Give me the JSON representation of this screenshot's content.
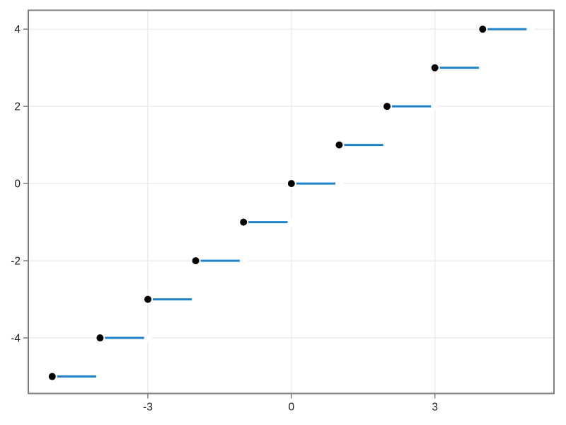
{
  "colors": {
    "background": "#ffffff",
    "line": "#1f82c8",
    "marker_fill": "#000000",
    "marker_halo": "#ffffff",
    "open_marker_fill": "#ffffff",
    "grid": "#ececec",
    "frame": "#7f7f7f",
    "tick": "#7f7f7f",
    "tick_label": "#1a1a1a"
  },
  "chart_data": {
    "type": "step",
    "title": "",
    "xlabel": "",
    "ylabel": "",
    "grid": true,
    "legend": "none",
    "step_width": 1,
    "points": [
      {
        "x": -5,
        "y": -5
      },
      {
        "x": -4,
        "y": -4
      },
      {
        "x": -3,
        "y": -3
      },
      {
        "x": -2,
        "y": -2
      },
      {
        "x": -1,
        "y": -1
      },
      {
        "x": 0,
        "y": 0
      },
      {
        "x": 1,
        "y": 1
      },
      {
        "x": 2,
        "y": 2
      },
      {
        "x": 3,
        "y": 3
      },
      {
        "x": 4,
        "y": 4
      }
    ],
    "x_ticks": [
      {
        "value": -3,
        "label": "-3"
      },
      {
        "value": 0,
        "label": "0"
      },
      {
        "value": 3,
        "label": "3"
      }
    ],
    "y_ticks": [
      {
        "value": -4,
        "label": "-4"
      },
      {
        "value": -2,
        "label": "-2"
      },
      {
        "value": 0,
        "label": "0"
      },
      {
        "value": 2,
        "label": "2"
      },
      {
        "value": 4,
        "label": "4"
      }
    ],
    "xlim": [
      -5.5,
      5.49
    ],
    "ylim": [
      -5.44,
      4.49
    ]
  }
}
